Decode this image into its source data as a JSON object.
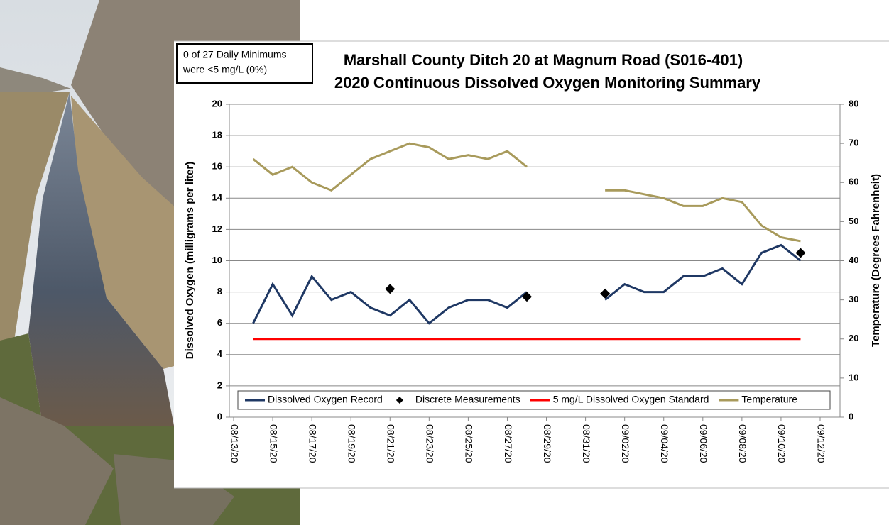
{
  "chart_data": {
    "type": "line",
    "title": [
      "Marshall County Ditch 20 at Magnum Road (S016-401)",
      "2020 Continuous Dissolved Oxygen Monitoring Summary"
    ],
    "annotation": [
      "0 of 27 Daily Minimums",
      "were <5 mg/L (0%)"
    ],
    "ylabel": "Dissolved Oxygen (milligrams per liter)",
    "y2label": "Temperature (Degrees Fahrenheit)",
    "x": [
      "08/14/20",
      "08/15/20",
      "08/16/20",
      "08/17/20",
      "08/18/20",
      "08/19/20",
      "08/20/20",
      "08/21/20",
      "08/22/20",
      "08/23/20",
      "08/24/20",
      "08/25/20",
      "08/26/20",
      "08/27/20",
      "08/28/20",
      "08/29/20",
      "08/30/20",
      "08/31/20",
      "09/01/20",
      "09/02/20",
      "09/03/20",
      "09/04/20",
      "09/05/20",
      "09/06/20",
      "09/07/20",
      "09/08/20",
      "09/09/20",
      "09/10/20",
      "09/11/20"
    ],
    "xlim": [
      "08/13/20",
      "09/12/20"
    ],
    "xticks": [
      "08/13/20",
      "08/15/20",
      "08/17/20",
      "08/19/20",
      "08/21/20",
      "08/23/20",
      "08/25/20",
      "08/27/20",
      "08/29/20",
      "08/31/20",
      "09/02/20",
      "09/04/20",
      "09/06/20",
      "09/08/20",
      "09/10/20",
      "09/12/20"
    ],
    "ylim": [
      0,
      20
    ],
    "yticks": [
      0,
      2,
      4,
      6,
      8,
      10,
      12,
      14,
      16,
      18,
      20
    ],
    "y2lim": [
      0,
      80
    ],
    "y2ticks": [
      0,
      10,
      20,
      30,
      40,
      50,
      60,
      70,
      80
    ],
    "grid": true,
    "legend": "bottom",
    "series": [
      {
        "name": "Dissolved Oxygen Record",
        "color": "#1f3864",
        "values": [
          6.0,
          8.5,
          6.5,
          9.0,
          7.5,
          8.0,
          7.0,
          6.5,
          7.5,
          6.0,
          7.0,
          7.5,
          7.5,
          7.0,
          8.0,
          null,
          null,
          null,
          7.5,
          8.5,
          8.0,
          8.0,
          9.0,
          9.0,
          9.5,
          8.5,
          10.5,
          11.0,
          10.0
        ]
      },
      {
        "name": "Discrete Measurements",
        "type": "scatter",
        "color": "#000000",
        "values": [
          null,
          null,
          null,
          null,
          null,
          null,
          null,
          8.2,
          null,
          null,
          null,
          null,
          null,
          null,
          7.7,
          null,
          null,
          null,
          7.9,
          null,
          null,
          null,
          null,
          null,
          null,
          null,
          null,
          null,
          10.5
        ]
      },
      {
        "name": "5 mg/L Dissolved Oxygen Standard",
        "color": "#ff0000",
        "values": [
          5,
          5,
          5,
          5,
          5,
          5,
          5,
          5,
          5,
          5,
          5,
          5,
          5,
          5,
          5,
          5,
          5,
          5,
          5,
          5,
          5,
          5,
          5,
          5,
          5,
          5,
          5,
          5,
          5
        ]
      },
      {
        "name": "Temperature",
        "axis": "y2",
        "color": "#a89a5b",
        "values": [
          66,
          62,
          64,
          60,
          58,
          62,
          66,
          68,
          70,
          69,
          66,
          67,
          66,
          68,
          64,
          null,
          null,
          null,
          58,
          58,
          57,
          56,
          54,
          54,
          56,
          55,
          49,
          46,
          45
        ]
      }
    ]
  }
}
